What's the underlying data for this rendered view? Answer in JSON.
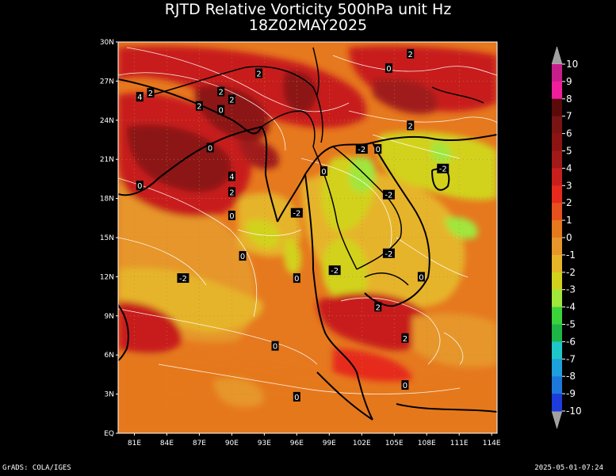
{
  "title": {
    "line1": "RJTD Relative Vorticity 500hPa unit Hz",
    "line2": "18Z02MAY2025"
  },
  "footer": {
    "left": "GrADS: COLA/IGES",
    "right": "2025-05-01-07:24"
  },
  "axes": {
    "lat_labels": [
      "30N",
      "27N",
      "24N",
      "21N",
      "18N",
      "15N",
      "12N",
      "9N",
      "6N",
      "3N",
      "EQ"
    ],
    "lon_labels": [
      "81E",
      "84E",
      "87E",
      "90E",
      "93E",
      "96E",
      "99E",
      "102E",
      "105E",
      "108E",
      "111E",
      "114E"
    ],
    "lat_range": [
      0,
      30
    ],
    "lon_range": [
      79.5,
      114.5
    ]
  },
  "colorbar": {
    "labels": [
      "10",
      "9",
      "8",
      "7",
      "6",
      "5",
      "4",
      "3",
      "2",
      "1",
      "0",
      "-1",
      "-2",
      "-3",
      "-4",
      "-5",
      "-6",
      "-7",
      "-8",
      "-9",
      "-10"
    ],
    "colors": [
      "#7a0a4a",
      "#c81e8c",
      "#f01e9c",
      "#5a0a0a",
      "#781414",
      "#8c1414",
      "#a01a1a",
      "#c81e1e",
      "#e62a1e",
      "#e6501e",
      "#e6781e",
      "#e6962a",
      "#e6b42a",
      "#d2d21e",
      "#a0e63c",
      "#3cd23c",
      "#1eb446",
      "#1ec8c8",
      "#1ea0dc",
      "#1e78dc",
      "#1e3cdc"
    ]
  },
  "contour_labels": [
    {
      "text": "2",
      "lon": 106.5,
      "lat": 29.1
    },
    {
      "text": "0",
      "lon": 104.5,
      "lat": 28.0
    },
    {
      "text": "2",
      "lon": 92.5,
      "lat": 27.6
    },
    {
      "text": "2",
      "lon": 89.0,
      "lat": 26.2
    },
    {
      "text": "4",
      "lon": 81.5,
      "lat": 25.8
    },
    {
      "text": "2",
      "lon": 82.5,
      "lat": 26.1
    },
    {
      "text": "2",
      "lon": 90.0,
      "lat": 25.6
    },
    {
      "text": "0",
      "lon": 89.0,
      "lat": 24.8
    },
    {
      "text": "2",
      "lon": 87.0,
      "lat": 25.1
    },
    {
      "text": "0",
      "lon": 88.0,
      "lat": 21.9
    },
    {
      "text": "2",
      "lon": 106.5,
      "lat": 23.6
    },
    {
      "text": "-2",
      "lon": 102.0,
      "lat": 21.8
    },
    {
      "text": "0",
      "lon": 103.5,
      "lat": 21.8
    },
    {
      "text": "4",
      "lon": 90.0,
      "lat": 19.7
    },
    {
      "text": "0",
      "lon": 81.5,
      "lat": 19.0
    },
    {
      "text": "2",
      "lon": 90.0,
      "lat": 18.5
    },
    {
      "text": "0",
      "lon": 98.5,
      "lat": 20.1
    },
    {
      "text": "-2",
      "lon": 109.5,
      "lat": 20.3
    },
    {
      "text": "-2",
      "lon": 104.5,
      "lat": 18.3
    },
    {
      "text": "-2",
      "lon": 96.0,
      "lat": 16.9
    },
    {
      "text": "0",
      "lon": 90.0,
      "lat": 16.7
    },
    {
      "text": "0",
      "lon": 91.0,
      "lat": 13.6
    },
    {
      "text": "-2",
      "lon": 104.5,
      "lat": 13.8
    },
    {
      "text": "-2",
      "lon": 85.5,
      "lat": 11.9
    },
    {
      "text": "0",
      "lon": 96.0,
      "lat": 11.9
    },
    {
      "text": "-2",
      "lon": 99.5,
      "lat": 12.5
    },
    {
      "text": "0",
      "lon": 107.5,
      "lat": 12.0
    },
    {
      "text": "2",
      "lon": 103.5,
      "lat": 9.7
    },
    {
      "text": "2",
      "lon": 106.0,
      "lat": 7.3
    },
    {
      "text": "0",
      "lon": 94.0,
      "lat": 6.7
    },
    {
      "text": "0",
      "lon": 106.0,
      "lat": 3.7
    },
    {
      "text": "0",
      "lon": 96.0,
      "lat": 2.8
    }
  ]
}
